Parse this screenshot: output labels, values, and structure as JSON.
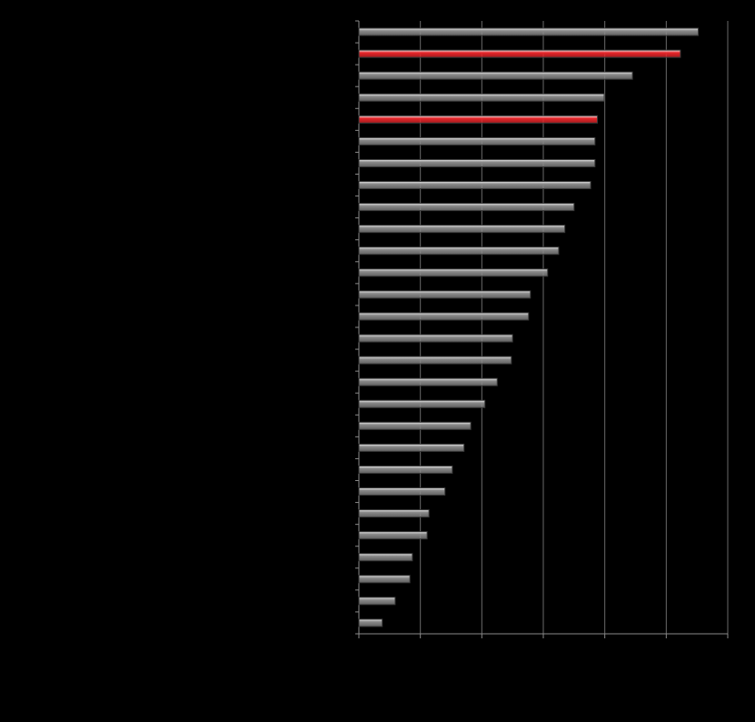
{
  "chart_data": {
    "type": "barh",
    "categories": [
      null,
      null,
      null,
      null,
      null,
      null,
      null,
      null,
      null,
      null,
      null,
      null,
      null,
      null,
      null,
      null,
      null,
      null,
      null,
      null,
      null,
      null,
      null,
      null,
      null,
      null,
      null,
      null
    ],
    "values": [
      5.52,
      5.23,
      4.45,
      3.99,
      3.88,
      3.84,
      3.84,
      3.77,
      3.5,
      3.35,
      3.25,
      3.07,
      2.79,
      2.76,
      2.5,
      2.48,
      2.25,
      2.05,
      1.82,
      1.71,
      1.52,
      1.4,
      1.14,
      1.11,
      0.87,
      0.83,
      0.59,
      0.38
    ],
    "colors": [
      "#8a8a8a",
      "#e8262a",
      "#8a8a8a",
      "#8a8a8a",
      "#e8262a",
      "#8a8a8a",
      "#8a8a8a",
      "#8a8a8a",
      "#8a8a8a",
      "#8a8a8a",
      "#8a8a8a",
      "#8a8a8a",
      "#8a8a8a",
      "#8a8a8a",
      "#8a8a8a",
      "#8a8a8a",
      "#8a8a8a",
      "#8a8a8a",
      "#8a8a8a",
      "#8a8a8a",
      "#8a8a8a",
      "#8a8a8a",
      "#8a8a8a",
      "#8a8a8a",
      "#8a8a8a",
      "#8a8a8a",
      "#8a8a8a",
      "#8a8a8a"
    ],
    "xlim": [
      0,
      6
    ],
    "xticks": [
      0,
      1,
      2,
      3,
      4,
      5,
      6
    ],
    "grid": true
  }
}
